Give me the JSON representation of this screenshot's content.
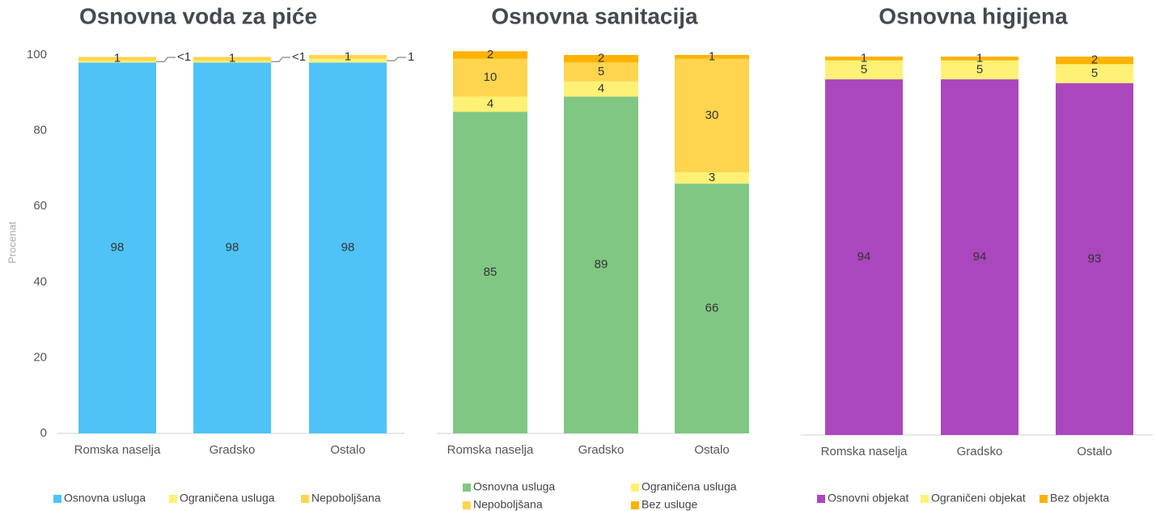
{
  "chart_data": [
    {
      "type": "stacked_bar",
      "title": "Osnovna voda za piće",
      "ylabel": "Procenat",
      "categories": [
        "Romska naselja",
        "Gradsko",
        "Ostalo"
      ],
      "ylim": [
        0,
        100
      ],
      "yticks": [
        0,
        20,
        40,
        60,
        80,
        100
      ],
      "series": [
        {
          "name": "Osnovna usluga",
          "color": "#4fc3f7",
          "values": [
            98,
            98,
            98
          ]
        },
        {
          "name": "Ograničena usluga",
          "color": "#fff176",
          "values": [
            0.5,
            0.5,
            1
          ],
          "value_labels": [
            "<1",
            "<1",
            "1"
          ]
        },
        {
          "name": "Nepoboljšana",
          "color": "#ffd54f",
          "values": [
            1,
            1,
            1
          ]
        }
      ]
    },
    {
      "type": "stacked_bar",
      "title": "Osnovna sanitacija",
      "categories": [
        "Romska naselja",
        "Gradsko",
        "Ostalo"
      ],
      "ylim": [
        0,
        100
      ],
      "series": [
        {
          "name": "Osnovna usluga",
          "color": "#81c784",
          "values": [
            85,
            89,
            66
          ]
        },
        {
          "name": "Ograničena usluga",
          "color": "#fff176",
          "values": [
            4,
            4,
            3
          ]
        },
        {
          "name": "Nepoboljšana",
          "color": "#ffd54f",
          "values": [
            10,
            5,
            30
          ]
        },
        {
          "name": "Bez usluge",
          "color": "#ffb300",
          "values": [
            2,
            2,
            1
          ]
        }
      ]
    },
    {
      "type": "stacked_bar",
      "title": "Osnovna higijena",
      "categories": [
        "Romska naselja",
        "Gradsko",
        "Ostalo"
      ],
      "ylim": [
        0,
        100
      ],
      "series": [
        {
          "name": "Osnovni objekat",
          "color": "#ab47bc",
          "values": [
            94,
            94,
            93
          ]
        },
        {
          "name": "Ograničeni objekat",
          "color": "#fff176",
          "values": [
            5,
            5,
            5
          ]
        },
        {
          "name": "Bez objekta",
          "color": "#ffb300",
          "values": [
            1,
            1,
            2
          ]
        }
      ]
    }
  ]
}
